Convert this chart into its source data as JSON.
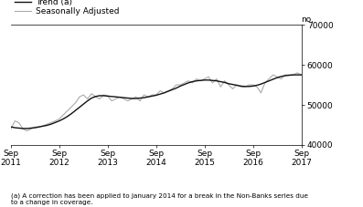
{
  "ylabel_right": "no.",
  "ylim": [
    40000,
    70000
  ],
  "yticks": [
    40000,
    50000,
    60000,
    70000
  ],
  "footnote": "(a) A correction has been applied to January 2014 for a break in the Non-Banks series due\nto a change in coverage.",
  "legend_entries": [
    "Trend (a)",
    "Seasonally Adjusted"
  ],
  "trend_color": "#111111",
  "seasonal_color": "#aaaaaa",
  "background_color": "#ffffff",
  "x_tick_labels": [
    "Sep\n2011",
    "Sep\n2012",
    "Sep\n2013",
    "Sep\n2014",
    "Sep\n2015",
    "Sep\n2016",
    "Sep\n2017"
  ],
  "trend_values": [
    44500,
    44300,
    44200,
    44100,
    44100,
    44200,
    44300,
    44500,
    44700,
    44900,
    45200,
    45600,
    46000,
    46500,
    47100,
    47800,
    48600,
    49400,
    50200,
    51000,
    51700,
    52100,
    52300,
    52300,
    52200,
    52100,
    52000,
    51900,
    51800,
    51700,
    51600,
    51600,
    51700,
    51800,
    52000,
    52200,
    52400,
    52700,
    53000,
    53400,
    53800,
    54200,
    54700,
    55100,
    55500,
    55800,
    56000,
    56100,
    56200,
    56200,
    56100,
    56000,
    55800,
    55600,
    55300,
    55100,
    54900,
    54700,
    54600,
    54600,
    54700,
    54900,
    55200,
    55600,
    56000,
    56400,
    56800,
    57100,
    57300,
    57400,
    57500,
    57500,
    57500
  ],
  "seasonal_values": [
    44000,
    46000,
    45500,
    44000,
    43500,
    44000,
    44500,
    44500,
    44800,
    45200,
    45600,
    46000,
    46500,
    47500,
    48500,
    49500,
    50500,
    52000,
    52500,
    51500,
    52800,
    52000,
    51500,
    52500,
    52200,
    51000,
    51500,
    52000,
    51500,
    51000,
    51500,
    52000,
    51000,
    52500,
    52000,
    52500,
    52500,
    53500,
    53000,
    53500,
    54000,
    55000,
    55000,
    55500,
    56000,
    55500,
    56500,
    56000,
    56500,
    57000,
    55500,
    56500,
    54500,
    56000,
    55000,
    54000,
    55000,
    54500,
    54500,
    55000,
    55000,
    54500,
    53000,
    55500,
    56500,
    57500,
    57000,
    56500,
    57500,
    57500,
    57500,
    58000,
    57500
  ]
}
